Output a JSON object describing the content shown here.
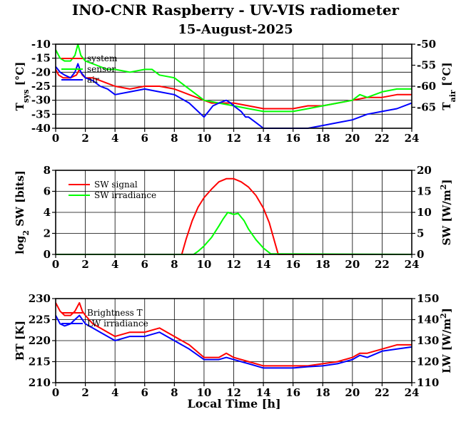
{
  "title": "INO-CNR Raspberry - UV-VIS radiometer",
  "date": "15-August-2025",
  "xlabel": "Local Time [h]",
  "colors": {
    "red": "#ff0000",
    "green": "#00ff00",
    "blue": "#0000ff"
  },
  "chart_data": [
    {
      "type": "line",
      "ylabel_left": "T_sys [°C]",
      "ylabel_right": "T_air [°C]",
      "xlim": [
        0,
        24
      ],
      "ylim_left": [
        -40,
        -10
      ],
      "ylim_right": [
        -70,
        -50
      ],
      "xticks": [
        0,
        2,
        4,
        6,
        8,
        10,
        12,
        14,
        16,
        18,
        20,
        22,
        24
      ],
      "yticks_left": [
        -40,
        -35,
        -30,
        -25,
        -20,
        -15,
        -10
      ],
      "yticks_right": [
        -65,
        -60,
        -55,
        -50
      ],
      "grid": true,
      "legend_position": "top-left",
      "series": [
        {
          "name": "system",
          "color": "red",
          "axis": "left",
          "x": [
            0,
            0.2,
            0.5,
            1,
            1.4,
            1.6,
            1.8,
            2,
            2.5,
            3,
            3.5,
            4,
            5,
            6,
            7,
            8,
            9,
            10,
            10.5,
            11,
            11.5,
            12,
            13,
            14,
            15,
            16,
            17,
            18,
            19,
            20,
            21,
            22,
            23,
            24
          ],
          "y": [
            -19,
            -21,
            -22,
            -22,
            -21,
            -19,
            -21,
            -22,
            -22,
            -23,
            -24,
            -25,
            -26,
            -25,
            -25,
            -26,
            -28,
            -30,
            -31,
            -31,
            -31,
            -31,
            -32,
            -33,
            -33,
            -33,
            -32,
            -32,
            -31,
            -30,
            -29,
            -29,
            -28,
            -28
          ]
        },
        {
          "name": "sensor",
          "color": "green",
          "axis": "left",
          "x": [
            0,
            0.3,
            0.6,
            1,
            1.3,
            1.5,
            1.7,
            2,
            2.5,
            3,
            3.5,
            4,
            5,
            6,
            6.5,
            7,
            8,
            9,
            10,
            11,
            12,
            13,
            14,
            15,
            16,
            17,
            18,
            19,
            20,
            20.5,
            21,
            22,
            23,
            24
          ],
          "y": [
            -12,
            -15,
            -16,
            -16,
            -14,
            -10,
            -14,
            -16,
            -17,
            -18,
            -19,
            -19,
            -20,
            -19,
            -19,
            -21,
            -22,
            -26,
            -30,
            -31,
            -32,
            -33,
            -34,
            -34,
            -34,
            -33,
            -32,
            -31,
            -30,
            -28,
            -29,
            -27,
            -26,
            -26
          ]
        },
        {
          "name": "air",
          "color": "blue",
          "axis": "left",
          "x": [
            0,
            0.3,
            0.6,
            1,
            1.3,
            1.5,
            1.7,
            2,
            2.5,
            3,
            3.5,
            4,
            5,
            6,
            7,
            8,
            9,
            10,
            10.3,
            10.6,
            11,
            11.5,
            11.8,
            12,
            12.5,
            12.8,
            13,
            13.5,
            14,
            15,
            16,
            17,
            18,
            19,
            20,
            21,
            22,
            23,
            24
          ],
          "y": [
            -18,
            -20,
            -21,
            -22,
            -20,
            -17,
            -20,
            -22,
            -23,
            -25,
            -26,
            -28,
            -27,
            -26,
            -27,
            -28,
            -31,
            -36,
            -34,
            -32,
            -31,
            -30,
            -31,
            -32,
            -34,
            -36,
            -36,
            -38,
            -40,
            -40,
            -40,
            -40,
            -39,
            -38,
            -37,
            -35,
            -34,
            -33,
            -31
          ]
        }
      ]
    },
    {
      "type": "line",
      "ylabel_left": "log2 SW [bits]",
      "ylabel_right": "SW [W/m2]",
      "xlim": [
        0,
        24
      ],
      "ylim_left": [
        0,
        8
      ],
      "ylim_right": [
        0,
        20
      ],
      "xticks": [
        0,
        2,
        4,
        6,
        8,
        10,
        12,
        14,
        16,
        18,
        20,
        22,
        24
      ],
      "yticks_left": [
        0,
        2,
        4,
        6,
        8
      ],
      "yticks_right": [
        0,
        5,
        10,
        15,
        20
      ],
      "grid": true,
      "legend_position": "top-left",
      "series": [
        {
          "name": "SW signal",
          "color": "red",
          "axis": "left",
          "x": [
            0,
            8.5,
            8.8,
            9.2,
            9.6,
            10,
            10.5,
            11,
            11.5,
            12,
            12.5,
            13,
            13.5,
            14,
            14.4,
            14.8,
            15,
            24
          ],
          "y": [
            0,
            0,
            1.5,
            3.2,
            4.5,
            5.4,
            6.2,
            6.9,
            7.2,
            7.2,
            6.9,
            6.4,
            5.6,
            4.4,
            3.0,
            1.0,
            0,
            0
          ]
        },
        {
          "name": "SW irradiance",
          "color": "green",
          "axis": "left",
          "x": [
            0,
            9.3,
            9.6,
            10,
            10.5,
            11,
            11.3,
            11.6,
            12,
            12.3,
            12.7,
            13,
            13.5,
            14,
            14.5,
            24
          ],
          "y": [
            0,
            0,
            0.3,
            0.8,
            1.6,
            2.7,
            3.4,
            4.0,
            3.8,
            3.9,
            3.2,
            2.4,
            1.4,
            0.6,
            0.05,
            0
          ]
        }
      ]
    },
    {
      "type": "line",
      "ylabel_left": "BT [K]",
      "ylabel_right": "LW [W/m2]",
      "xlim": [
        0,
        24
      ],
      "ylim_left": [
        210,
        230
      ],
      "ylim_right": [
        110,
        150
      ],
      "xticks": [
        0,
        2,
        4,
        6,
        8,
        10,
        12,
        14,
        16,
        18,
        20,
        22,
        24
      ],
      "yticks_left": [
        210,
        215,
        220,
        225,
        230
      ],
      "yticks_right": [
        110,
        120,
        130,
        140,
        150
      ],
      "grid": true,
      "legend_position": "top-left",
      "series": [
        {
          "name": "Brightness T",
          "color": "red",
          "axis": "left",
          "x": [
            0,
            0.3,
            0.6,
            1,
            1.3,
            1.6,
            1.8,
            2,
            2.5,
            3,
            3.5,
            4,
            5,
            6,
            7,
            8,
            9,
            10,
            11,
            11.5,
            12,
            13,
            14,
            15,
            16,
            17,
            18,
            19,
            20,
            20.5,
            21,
            22,
            23,
            24
          ],
          "y": [
            229,
            227,
            226,
            226,
            227,
            229,
            227,
            226,
            224,
            223,
            222,
            221,
            222,
            222,
            223,
            221,
            219,
            216,
            216,
            217,
            216,
            215,
            214,
            214,
            214,
            214,
            214.5,
            215,
            216,
            217,
            217,
            218,
            219,
            219
          ]
        },
        {
          "name": "LW irradiance",
          "color": "blue",
          "axis": "left",
          "x": [
            0,
            0.3,
            0.6,
            1,
            1.3,
            1.6,
            1.8,
            2,
            2.5,
            3,
            3.5,
            4,
            5,
            6,
            7,
            8,
            9,
            10,
            11,
            11.5,
            12,
            13,
            14,
            15,
            16,
            17,
            18,
            19,
            20,
            20.5,
            21,
            22,
            23,
            24
          ],
          "y": [
            226,
            224,
            223.5,
            224,
            225,
            226,
            225,
            224,
            223,
            222,
            221,
            220,
            221,
            221,
            222,
            220,
            218,
            215.5,
            215.5,
            216,
            215.5,
            214.5,
            213.5,
            213.5,
            213.5,
            213.8,
            214,
            214.5,
            215.5,
            216.5,
            216,
            217.5,
            218,
            218.5
          ]
        }
      ]
    }
  ]
}
